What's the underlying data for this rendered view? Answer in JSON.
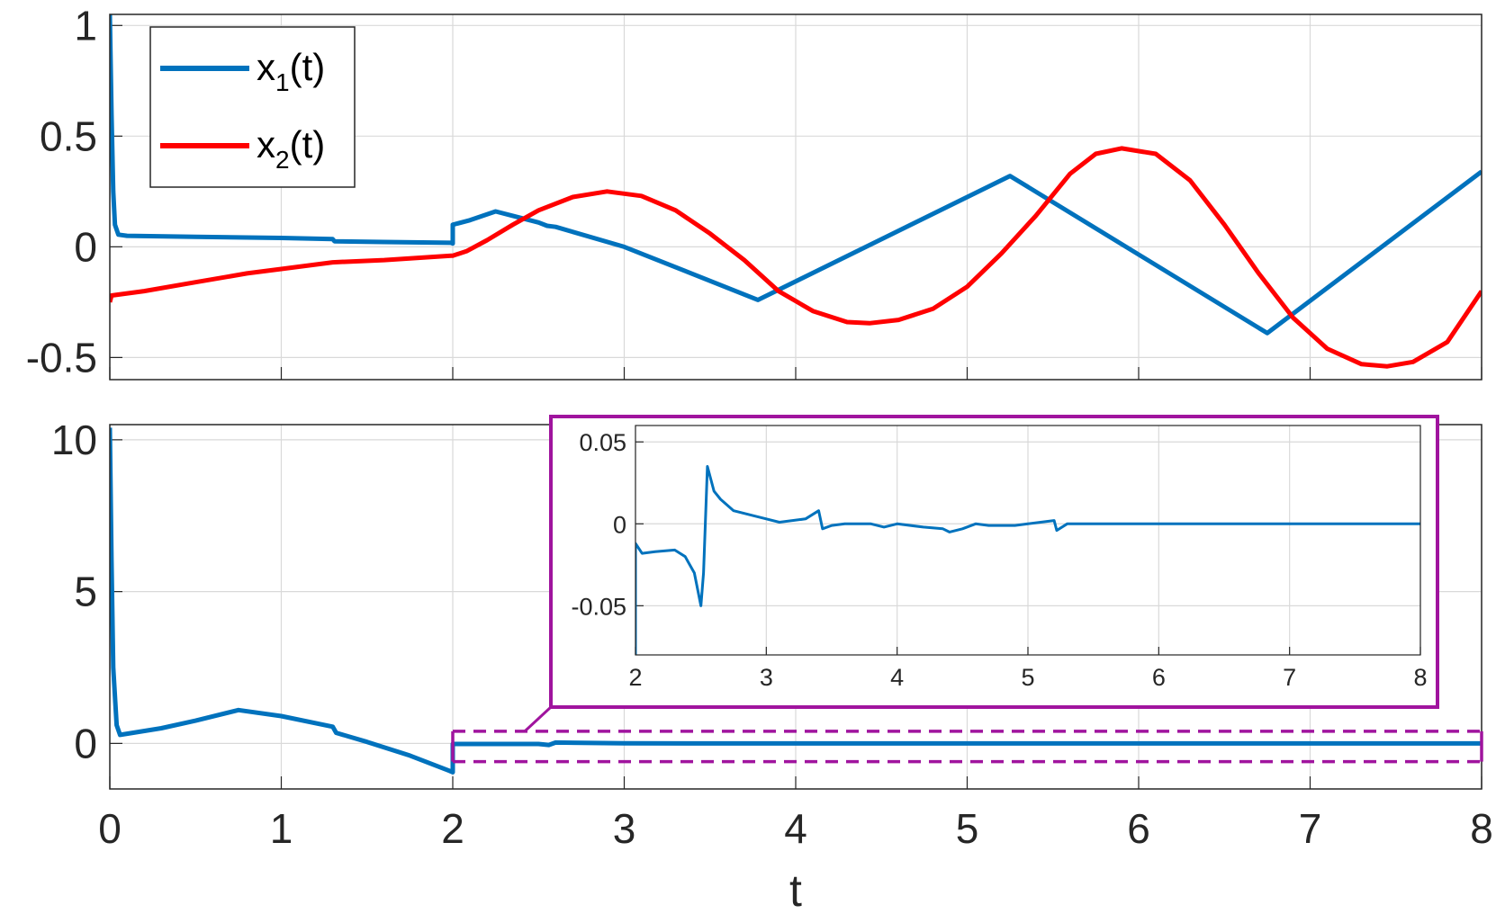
{
  "chart_data": [
    {
      "type": "line",
      "panel": "top",
      "xlabel": "",
      "ylabel": "",
      "xlim": [
        0,
        8
      ],
      "ylim": [
        -0.6,
        1.05
      ],
      "xticks": [
        0,
        1,
        2,
        3,
        4,
        5,
        6,
        7,
        8
      ],
      "yticks": [
        -0.5,
        0,
        0.5,
        1
      ],
      "ytick_labels": [
        "-0.5",
        "0",
        "0.5",
        "1"
      ],
      "grid": true,
      "legend_position": "top-left",
      "series": [
        {
          "name": "x1(t)",
          "legend_base": "x",
          "legend_sub": "1",
          "legend_suffix": "(t)",
          "color": "#0072BD",
          "points": [
            [
              0,
              1.05
            ],
            [
              0.01,
              0.6
            ],
            [
              0.02,
              0.25
            ],
            [
              0.03,
              0.1
            ],
            [
              0.05,
              0.055
            ],
            [
              0.1,
              0.05
            ],
            [
              0.5,
              0.045
            ],
            [
              1.0,
              0.04
            ],
            [
              1.3,
              0.035
            ],
            [
              1.31,
              0.025
            ],
            [
              1.6,
              0.022
            ],
            [
              1.99,
              0.018
            ],
            [
              2.0,
              0.015
            ],
            [
              2.0,
              0.1
            ],
            [
              2.1,
              0.12
            ],
            [
              2.25,
              0.16
            ],
            [
              2.35,
              0.14
            ],
            [
              2.5,
              0.11
            ],
            [
              2.55,
              0.095
            ],
            [
              2.6,
              0.09
            ],
            [
              3.0,
              0.0
            ],
            [
              3.78,
              -0.24
            ],
            [
              5.25,
              0.32
            ],
            [
              6.75,
              -0.39
            ],
            [
              8.0,
              0.34
            ]
          ]
        },
        {
          "name": "x2(t)",
          "legend_base": "x",
          "legend_sub": "2",
          "legend_suffix": "(t)",
          "color": "#FF0000",
          "points": [
            [
              0,
              -0.25
            ],
            [
              0.01,
              -0.22
            ],
            [
              0.2,
              -0.2
            ],
            [
              0.5,
              -0.16
            ],
            [
              0.8,
              -0.12
            ],
            [
              1.0,
              -0.1
            ],
            [
              1.3,
              -0.07
            ],
            [
              1.6,
              -0.06
            ],
            [
              1.99,
              -0.04
            ],
            [
              2.0,
              -0.04
            ],
            [
              2.08,
              -0.02
            ],
            [
              2.2,
              0.03
            ],
            [
              2.35,
              0.1
            ],
            [
              2.5,
              0.165
            ],
            [
              2.7,
              0.225
            ],
            [
              2.9,
              0.25
            ],
            [
              3.1,
              0.23
            ],
            [
              3.3,
              0.165
            ],
            [
              3.5,
              0.06
            ],
            [
              3.7,
              -0.06
            ],
            [
              3.9,
              -0.2
            ],
            [
              4.1,
              -0.29
            ],
            [
              4.3,
              -0.34
            ],
            [
              4.43,
              -0.345
            ],
            [
              4.6,
              -0.33
            ],
            [
              4.8,
              -0.28
            ],
            [
              5.0,
              -0.18
            ],
            [
              5.2,
              -0.03
            ],
            [
              5.4,
              0.14
            ],
            [
              5.6,
              0.33
            ],
            [
              5.75,
              0.42
            ],
            [
              5.9,
              0.445
            ],
            [
              6.1,
              0.42
            ],
            [
              6.3,
              0.3
            ],
            [
              6.5,
              0.1
            ],
            [
              6.7,
              -0.12
            ],
            [
              6.9,
              -0.32
            ],
            [
              7.1,
              -0.46
            ],
            [
              7.3,
              -0.53
            ],
            [
              7.45,
              -0.54
            ],
            [
              7.6,
              -0.52
            ],
            [
              7.8,
              -0.43
            ],
            [
              8.0,
              -0.2
            ]
          ]
        }
      ]
    },
    {
      "type": "line",
      "panel": "bottom",
      "xlabel": "t",
      "ylabel": "",
      "xlim": [
        0,
        8
      ],
      "ylim": [
        -1.5,
        10.5
      ],
      "xticks": [
        0,
        1,
        2,
        3,
        4,
        5,
        6,
        7,
        8
      ],
      "xtick_labels": [
        "0",
        "1",
        "2",
        "3",
        "4",
        "5",
        "6",
        "7",
        "8"
      ],
      "yticks": [
        0,
        5,
        10
      ],
      "ytick_labels": [
        "0",
        "5",
        "10"
      ],
      "grid": true,
      "zoom_box": {
        "x": [
          2,
          8
        ],
        "y": [
          -0.6,
          0.4
        ]
      },
      "series": [
        {
          "name": "",
          "color": "#0072BD",
          "points": [
            [
              0,
              10.4
            ],
            [
              0.01,
              6.0
            ],
            [
              0.02,
              2.5
            ],
            [
              0.04,
              0.6
            ],
            [
              0.06,
              0.28
            ],
            [
              0.3,
              0.5
            ],
            [
              0.5,
              0.75
            ],
            [
              0.75,
              1.1
            ],
            [
              1.0,
              0.9
            ],
            [
              1.3,
              0.55
            ],
            [
              1.32,
              0.35
            ],
            [
              1.5,
              0.05
            ],
            [
              1.75,
              -0.4
            ],
            [
              1.98,
              -0.9
            ],
            [
              2.0,
              -0.95
            ],
            [
              2.0,
              -0.02
            ],
            [
              2.5,
              -0.02
            ],
            [
              2.56,
              -0.05
            ],
            [
              2.6,
              0.03
            ],
            [
              3.0,
              0.005
            ],
            [
              3.5,
              0.0
            ],
            [
              8.0,
              0.0
            ]
          ]
        }
      ]
    },
    {
      "type": "line",
      "panel": "inset",
      "xlabel": "",
      "ylabel": "",
      "xlim": [
        2,
        8
      ],
      "ylim": [
        -0.08,
        0.06
      ],
      "xticks": [
        2,
        3,
        4,
        5,
        6,
        7,
        8
      ],
      "xtick_labels": [
        "2",
        "3",
        "4",
        "5",
        "6",
        "7",
        "8"
      ],
      "yticks": [
        -0.05,
        0,
        0.05
      ],
      "ytick_labels": [
        "-0.05",
        "0",
        "0.05"
      ],
      "grid": true,
      "series": [
        {
          "name": "",
          "color": "#0072BD",
          "points": [
            [
              2.0,
              -0.08
            ],
            [
              2.0,
              -0.012
            ],
            [
              2.05,
              -0.018
            ],
            [
              2.15,
              -0.017
            ],
            [
              2.3,
              -0.016
            ],
            [
              2.38,
              -0.02
            ],
            [
              2.45,
              -0.03
            ],
            [
              2.5,
              -0.05
            ],
            [
              2.52,
              -0.03
            ],
            [
              2.55,
              0.035
            ],
            [
              2.6,
              0.02
            ],
            [
              2.65,
              0.015
            ],
            [
              2.75,
              0.008
            ],
            [
              2.9,
              0.005
            ],
            [
              3.0,
              0.003
            ],
            [
              3.1,
              0.001
            ],
            [
              3.3,
              0.003
            ],
            [
              3.4,
              0.008
            ],
            [
              3.43,
              -0.003
            ],
            [
              3.5,
              -0.001
            ],
            [
              3.6,
              0.0
            ],
            [
              3.8,
              0.0
            ],
            [
              3.9,
              -0.002
            ],
            [
              4.0,
              0.0
            ],
            [
              4.2,
              -0.002
            ],
            [
              4.35,
              -0.003
            ],
            [
              4.4,
              -0.005
            ],
            [
              4.5,
              -0.003
            ],
            [
              4.6,
              0.0
            ],
            [
              4.7,
              -0.001
            ],
            [
              4.9,
              -0.001
            ],
            [
              5.0,
              0.0
            ],
            [
              5.2,
              0.002
            ],
            [
              5.22,
              -0.004
            ],
            [
              5.3,
              0.0
            ],
            [
              5.6,
              0.0
            ],
            [
              8.0,
              0.0
            ]
          ]
        }
      ]
    }
  ]
}
